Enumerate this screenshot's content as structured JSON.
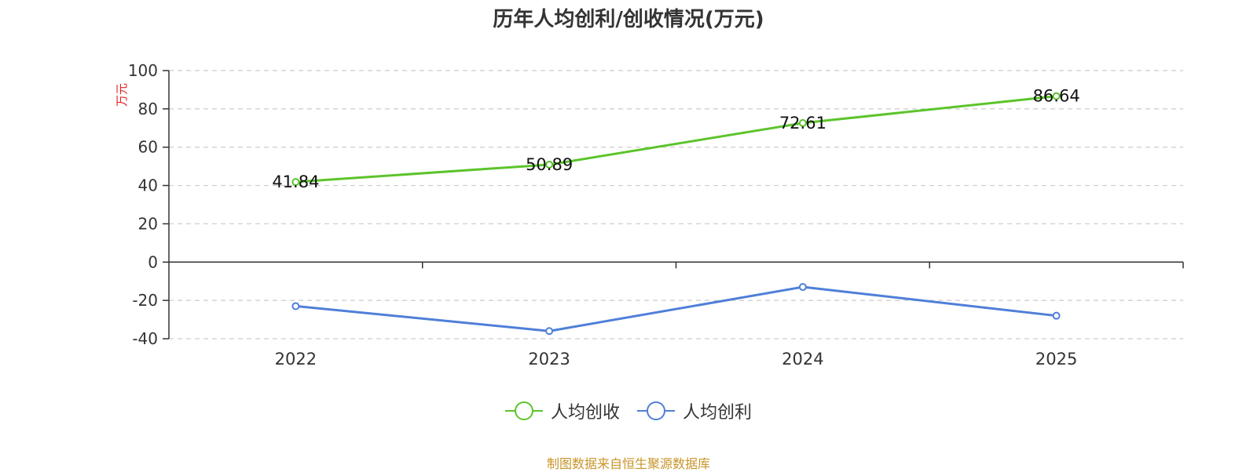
{
  "title": "历年人均创利/创收情况(万元)",
  "chart_data": {
    "type": "line",
    "categories": [
      "2022",
      "2023",
      "2024",
      "2025"
    ],
    "ylabel": "万元",
    "ylim": [
      -40,
      100
    ],
    "yticks": [
      100,
      80,
      60,
      40,
      20,
      0,
      -20,
      -40
    ],
    "grid": true,
    "legend_position": "bottom",
    "series": [
      {
        "name": "人均创收",
        "values": [
          41.84,
          50.89,
          72.61,
          86.64
        ],
        "color": "#5cc42b",
        "data_labels": [
          "41.84",
          "50.89",
          "72.61",
          "86.64"
        ]
      },
      {
        "name": "人均创利",
        "values": [
          -23,
          -36,
          -13,
          -28
        ],
        "color": "#4f7fd9",
        "data_labels": []
      }
    ]
  },
  "source": "制图数据来自恒生聚源数据库"
}
